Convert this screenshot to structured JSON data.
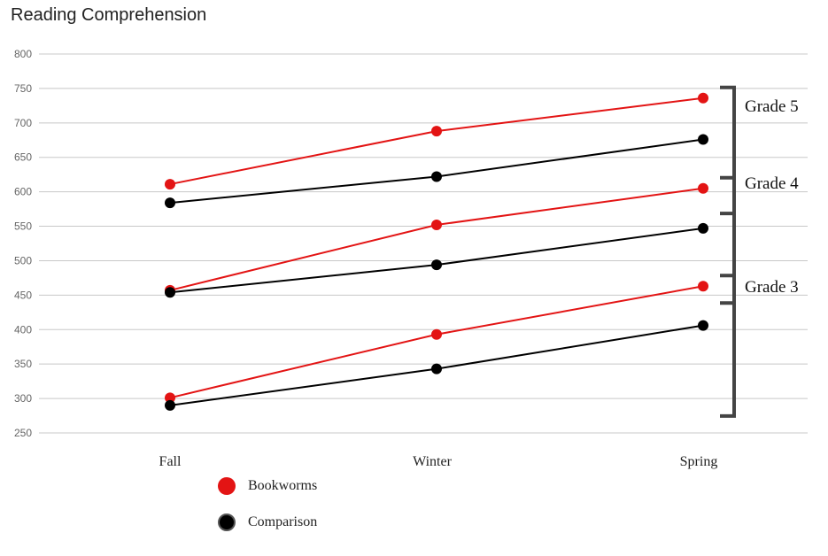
{
  "chart_data": {
    "type": "line",
    "title": "Reading Comprehension",
    "categories": [
      "Fall",
      "Winter",
      "Spring"
    ],
    "ylim": [
      250,
      800
    ],
    "yticks": [
      800,
      750,
      700,
      650,
      600,
      550,
      500,
      450,
      400,
      350,
      300,
      250
    ],
    "grid": true,
    "legend_position": "bottom-left",
    "colors": {
      "Bookworms": "#e31414",
      "Comparison": "#000000"
    },
    "legend": [
      "Bookworms",
      "Comparison"
    ],
    "groups": [
      {
        "label": "Grade 5",
        "series": [
          {
            "type": "Bookworms",
            "values": [
              611,
              688,
              736
            ]
          },
          {
            "type": "Comparison",
            "values": [
              584,
              622,
              676
            ]
          }
        ]
      },
      {
        "label": "Grade 4",
        "series": [
          {
            "type": "Bookworms",
            "values": [
              457,
              552,
              605
            ]
          },
          {
            "type": "Comparison",
            "values": [
              454,
              494,
              547
            ]
          }
        ]
      },
      {
        "label": "Grade 3",
        "series": [
          {
            "type": "Bookworms",
            "values": [
              301,
              393,
              463
            ]
          },
          {
            "type": "Comparison",
            "values": [
              290,
              343,
              406
            ]
          }
        ]
      }
    ]
  }
}
